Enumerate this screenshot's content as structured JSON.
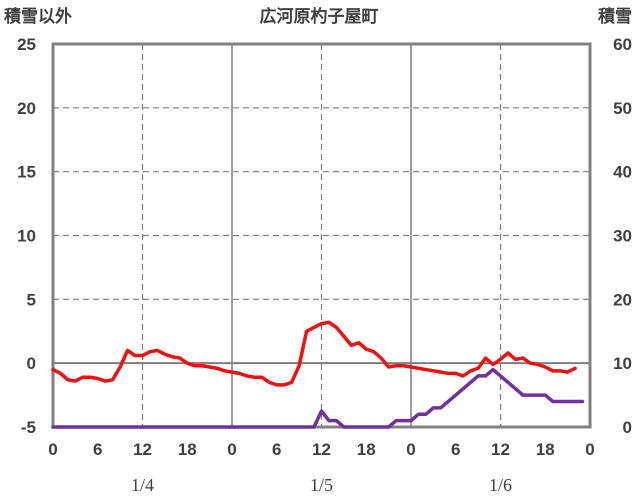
{
  "chart_data": {
    "type": "line",
    "title": "広河原杓子屋町",
    "left_axis_label": "積雪以外",
    "right_axis_label": "積雪",
    "y_left": {
      "min": -5,
      "max": 25,
      "ticks": [
        -5,
        0,
        5,
        10,
        15,
        20,
        25
      ]
    },
    "y_right": {
      "min": 0,
      "max": 60,
      "ticks": [
        0,
        10,
        20,
        30,
        40,
        50,
        60
      ]
    },
    "x_hours": {
      "min": 0,
      "max": 72
    },
    "x_tick_hours": [
      0,
      6,
      12,
      18,
      24,
      30,
      36,
      42,
      48,
      54,
      60,
      66,
      72
    ],
    "x_tick_labels": [
      "0",
      "6",
      "12",
      "18",
      "0",
      "6",
      "12",
      "18",
      "0",
      "6",
      "12",
      "18",
      "0"
    ],
    "day_separators_hours": [
      24,
      48
    ],
    "noon_lines_hours": [
      12,
      36,
      60
    ],
    "date_labels": [
      {
        "text": "1/4",
        "hour": 12
      },
      {
        "text": "1/5",
        "hour": 36
      },
      {
        "text": "1/6",
        "hour": 60
      }
    ],
    "grid": true,
    "series": [
      {
        "axis": "left",
        "color": "#ee1111",
        "x": [
          0,
          1,
          2,
          3,
          4,
          5,
          6,
          7,
          8,
          9,
          10,
          11,
          12,
          13,
          14,
          15,
          16,
          17,
          18,
          19,
          20,
          21,
          22,
          23,
          24,
          25,
          26,
          27,
          28,
          29,
          30,
          31,
          32,
          33,
          34,
          35,
          36,
          37,
          38,
          39,
          40,
          41,
          42,
          43,
          44,
          45,
          46,
          47,
          48,
          49,
          50,
          51,
          52,
          53,
          54,
          55,
          56,
          57,
          58,
          59,
          60,
          61,
          62,
          63,
          64,
          65,
          66,
          67,
          68,
          69,
          70,
          71
        ],
        "values": [
          -0.5,
          -0.8,
          -1.3,
          -1.4,
          -1.1,
          -1.1,
          -1.2,
          -1.4,
          -1.3,
          -0.3,
          1.0,
          0.6,
          0.6,
          0.9,
          1.0,
          0.7,
          0.5,
          0.4,
          0.0,
          -0.2,
          -0.2,
          -0.3,
          -0.4,
          -0.6,
          -0.7,
          -0.8,
          -1.0,
          -1.1,
          -1.1,
          -1.5,
          -1.7,
          -1.7,
          -1.5,
          -0.2,
          2.5,
          2.8,
          3.1,
          3.2,
          2.8,
          2.1,
          1.4,
          1.6,
          1.1,
          0.9,
          0.4,
          -0.3,
          -0.2,
          -0.2,
          -0.3,
          -0.4,
          -0.5,
          -0.6,
          -0.7,
          -0.8,
          -0.8,
          -1.0,
          -0.6,
          -0.4,
          0.4,
          -0.1,
          0.3,
          0.8,
          0.3,
          0.4,
          0.0,
          -0.1,
          -0.3,
          -0.6,
          -0.6,
          -0.7,
          -0.4,
          null
        ]
      },
      {
        "axis": "right",
        "color": "#7030a0",
        "x": [
          0,
          35,
          36,
          37,
          38,
          39,
          40,
          41,
          42,
          43,
          44,
          45,
          46,
          47,
          48,
          49,
          50,
          51,
          52,
          53,
          54,
          55,
          56,
          57,
          58,
          59,
          60,
          61,
          62,
          63,
          64,
          65,
          66,
          67,
          68,
          69,
          70,
          71
        ],
        "values": [
          0,
          0,
          2.5,
          1,
          1,
          0,
          0,
          0,
          0,
          0,
          0,
          0,
          1,
          1,
          1,
          2,
          2,
          3,
          3,
          4,
          5,
          6,
          7,
          8,
          8,
          9,
          8,
          7,
          6,
          5,
          5,
          5,
          5,
          4,
          4,
          4,
          4,
          4
        ]
      }
    ]
  }
}
